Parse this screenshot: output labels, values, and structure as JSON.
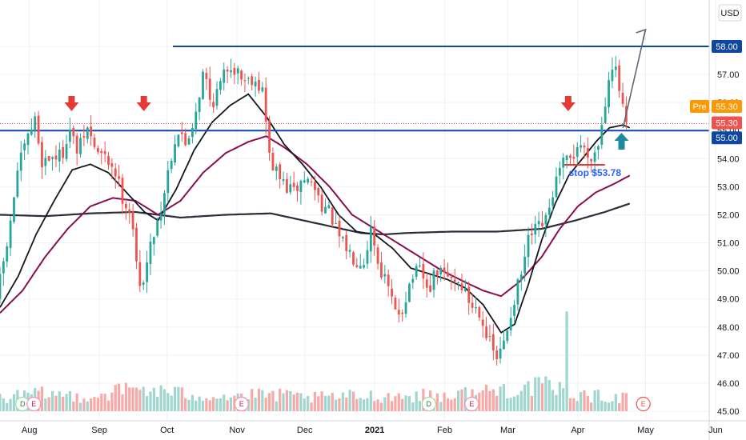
{
  "chart_data": {
    "type": "candlestick",
    "currency": "USD",
    "y_axis": {
      "min": 45,
      "max": 58.8,
      "ticks": [
        "45.00",
        "46.00",
        "47.00",
        "48.00",
        "49.00",
        "50.00",
        "51.00",
        "52.00",
        "53.00",
        "54.00",
        "55.00",
        "56.00",
        "57.00",
        "58.00"
      ]
    },
    "x_axis": {
      "labels": [
        {
          "text": "Aug",
          "day": 13,
          "bold": false
        },
        {
          "text": "Sep",
          "day": 44,
          "bold": false
        },
        {
          "text": "Oct",
          "day": 74,
          "bold": false
        },
        {
          "text": "Nov",
          "day": 105,
          "bold": false
        },
        {
          "text": "Dec",
          "day": 135,
          "bold": false
        },
        {
          "text": "2021",
          "day": 166,
          "bold": true
        },
        {
          "text": "Feb",
          "day": 197,
          "bold": false
        },
        {
          "text": "Mar",
          "day": 225,
          "bold": false
        },
        {
          "text": "Apr",
          "day": 256,
          "bold": false
        },
        {
          "text": "May",
          "day": 286,
          "bold": false
        },
        {
          "text": "Jun",
          "day": 317,
          "bold": false
        }
      ]
    },
    "price_path": [
      [
        0,
        49.0
      ],
      [
        6,
        51.5
      ],
      [
        9,
        53.5
      ],
      [
        13,
        54.5
      ],
      [
        17,
        55.4
      ],
      [
        20,
        53.9
      ],
      [
        25,
        54.1
      ],
      [
        29,
        54.1
      ],
      [
        32,
        55.1
      ],
      [
        36,
        54.2
      ],
      [
        40,
        55.1
      ],
      [
        44,
        54.3
      ],
      [
        48,
        54.0
      ],
      [
        52,
        53.7
      ],
      [
        56,
        52.6
      ],
      [
        60,
        52.0
      ],
      [
        63,
        49.2
      ],
      [
        67,
        50.4
      ],
      [
        70,
        51.5
      ],
      [
        73,
        52.2
      ],
      [
        76,
        53.6
      ],
      [
        80,
        55.0
      ],
      [
        84,
        54.5
      ],
      [
        88,
        55.6
      ],
      [
        92,
        57.2
      ],
      [
        95,
        55.9
      ],
      [
        99,
        56.6
      ],
      [
        103,
        57.4
      ],
      [
        107,
        57.1
      ],
      [
        110,
        56.8
      ],
      [
        114,
        56.9
      ],
      [
        118,
        56.4
      ],
      [
        121,
        54.0
      ],
      [
        124,
        53.5
      ],
      [
        128,
        53.0
      ],
      [
        132,
        52.8
      ],
      [
        136,
        53.3
      ],
      [
        140,
        53.1
      ],
      [
        144,
        52.4
      ],
      [
        148,
        52.0
      ],
      [
        152,
        51.1
      ],
      [
        156,
        50.7
      ],
      [
        159,
        50.4
      ],
      [
        163,
        50.4
      ],
      [
        166,
        51.6
      ],
      [
        169,
        50.3
      ],
      [
        173,
        49.5
      ],
      [
        177,
        48.4
      ],
      [
        180,
        48.7
      ],
      [
        184,
        49.8
      ],
      [
        188,
        50.0
      ],
      [
        191,
        49.2
      ],
      [
        195,
        50.0
      ],
      [
        199,
        49.8
      ],
      [
        203,
        49.7
      ],
      [
        206,
        49.5
      ],
      [
        210,
        48.8
      ],
      [
        214,
        48.6
      ],
      [
        218,
        47.5
      ],
      [
        222,
        46.8
      ],
      [
        225,
        47.5
      ],
      [
        229,
        48.9
      ],
      [
        233,
        50.0
      ],
      [
        236,
        51.2
      ],
      [
        240,
        51.5
      ],
      [
        244,
        51.8
      ],
      [
        247,
        53.0
      ],
      [
        251,
        53.8
      ],
      [
        255,
        54.0
      ],
      [
        258,
        54.6
      ],
      [
        262,
        54.1
      ],
      [
        266,
        54.3
      ],
      [
        269,
        55.6
      ],
      [
        272,
        57.5
      ],
      [
        274,
        57.2
      ],
      [
        276,
        56.4
      ],
      [
        278,
        55.5
      ],
      [
        279,
        55.3
      ]
    ],
    "sma_20": [
      [
        0,
        48.7
      ],
      [
        8,
        49.8
      ],
      [
        16,
        51.3
      ],
      [
        24,
        52.5
      ],
      [
        32,
        53.6
      ],
      [
        40,
        53.8
      ],
      [
        48,
        53.5
      ],
      [
        56,
        52.8
      ],
      [
        64,
        52.1
      ],
      [
        70,
        51.8
      ],
      [
        78,
        52.9
      ],
      [
        86,
        54.3
      ],
      [
        94,
        55.3
      ],
      [
        102,
        55.9
      ],
      [
        110,
        56.3
      ],
      [
        118,
        55.5
      ],
      [
        126,
        54.5
      ],
      [
        134,
        53.8
      ],
      [
        142,
        53.0
      ],
      [
        150,
        52.0
      ],
      [
        158,
        51.4
      ],
      [
        166,
        51.3
      ],
      [
        174,
        50.8
      ],
      [
        182,
        50.1
      ],
      [
        190,
        49.9
      ],
      [
        198,
        49.7
      ],
      [
        206,
        49.4
      ],
      [
        214,
        48.8
      ],
      [
        222,
        47.8
      ],
      [
        228,
        48.1
      ],
      [
        234,
        49.5
      ],
      [
        240,
        51.1
      ],
      [
        246,
        52.4
      ],
      [
        252,
        53.4
      ],
      [
        258,
        54.0
      ],
      [
        264,
        54.6
      ],
      [
        270,
        55.1
      ],
      [
        276,
        55.2
      ],
      [
        279,
        55.1
      ]
    ],
    "sma_50": [
      [
        0,
        48.5
      ],
      [
        10,
        49.3
      ],
      [
        20,
        50.5
      ],
      [
        30,
        51.5
      ],
      [
        40,
        52.3
      ],
      [
        50,
        52.6
      ],
      [
        60,
        52.5
      ],
      [
        70,
        52.0
      ],
      [
        80,
        52.5
      ],
      [
        90,
        53.5
      ],
      [
        100,
        54.2
      ],
      [
        110,
        54.6
      ],
      [
        118,
        54.8
      ],
      [
        126,
        54.4
      ],
      [
        136,
        53.8
      ],
      [
        146,
        53.0
      ],
      [
        156,
        52.0
      ],
      [
        166,
        51.5
      ],
      [
        176,
        51.0
      ],
      [
        186,
        50.5
      ],
      [
        196,
        50.0
      ],
      [
        206,
        49.6
      ],
      [
        214,
        49.3
      ],
      [
        222,
        49.1
      ],
      [
        230,
        49.6
      ],
      [
        240,
        50.5
      ],
      [
        248,
        51.5
      ],
      [
        256,
        52.3
      ],
      [
        264,
        52.8
      ],
      [
        272,
        53.1
      ],
      [
        279,
        53.4
      ]
    ],
    "sma_200": [
      [
        0,
        52.0
      ],
      [
        20,
        51.95
      ],
      [
        40,
        52.05
      ],
      [
        60,
        52.1
      ],
      [
        80,
        51.9
      ],
      [
        100,
        52.0
      ],
      [
        120,
        52.05
      ],
      [
        140,
        51.7
      ],
      [
        160,
        51.35
      ],
      [
        170,
        51.3
      ],
      [
        180,
        51.35
      ],
      [
        200,
        51.4
      ],
      [
        220,
        51.4
      ],
      [
        240,
        51.5
      ],
      [
        255,
        51.8
      ],
      [
        268,
        52.1
      ],
      [
        279,
        52.4
      ]
    ],
    "volume_profile": [
      [
        0,
        0.35
      ],
      [
        20,
        0.45
      ],
      [
        40,
        0.38
      ],
      [
        60,
        0.6
      ],
      [
        80,
        0.45
      ],
      [
        100,
        0.4
      ],
      [
        120,
        0.42
      ],
      [
        140,
        0.35
      ],
      [
        160,
        0.4
      ],
      [
        180,
        0.4
      ],
      [
        200,
        0.42
      ],
      [
        220,
        0.55
      ],
      [
        240,
        0.65
      ],
      [
        260,
        0.4
      ],
      [
        279,
        0.35
      ]
    ],
    "volume_spike": {
      "day": 251,
      "value": 2.6
    },
    "last_price": "55.30",
    "premarket_price": "55.30",
    "premarket_label": "Pre",
    "resistance_label": "58.00",
    "support_label": "55.00",
    "resistance_level": 58.0,
    "support_level": 55.0,
    "dotted_level": 55.25,
    "stop_label": "stop $53.78",
    "stop_level": 53.78,
    "sell_arrow_days": [
      31,
      63,
      251
    ],
    "buy_arrow_day": 275,
    "projection": [
      [
        276,
        55.1
      ],
      [
        286,
        58.6
      ]
    ],
    "events": [
      {
        "label": "D",
        "day": 10,
        "kind": "dividend"
      },
      {
        "label": "E",
        "day": 15,
        "kind": "earnings"
      },
      {
        "label": "E",
        "day": 107,
        "kind": "earnings"
      },
      {
        "label": "D",
        "day": 190,
        "kind": "dividend"
      },
      {
        "label": "E",
        "day": 209,
        "kind": "earnings"
      },
      {
        "label": "E",
        "day": 285,
        "kind": "earnings-upcoming"
      }
    ],
    "grid": true,
    "legend": "none"
  },
  "colors": {
    "up": "#26a69a",
    "down": "#ef5350",
    "up_volume": "#9fd6cf",
    "down_volume": "#f7a9a7",
    "sma_20": "#131722",
    "sma_50": "#880e4f",
    "sma_200": "#2a2e39",
    "level_line": "#0d47a1",
    "pre_badge": "#ff9800",
    "last_badge": "#ef5350",
    "stop_line": "#e53935",
    "sell_arrow": "#e53935",
    "buy_arrow": "#1e8a9e",
    "projection": "#5d6874",
    "grid": "#eef1f4"
  }
}
